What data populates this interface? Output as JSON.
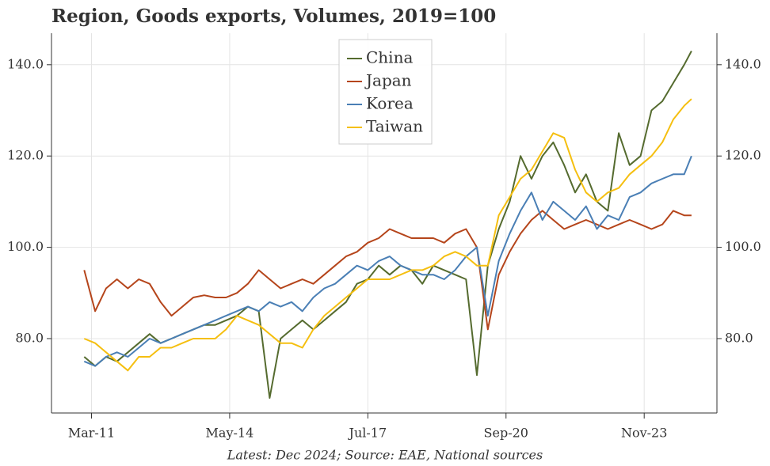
{
  "chart_data": {
    "type": "line",
    "title": "Region, Goods exports, Volumes, 2019=100",
    "source": "Latest: Dec 2024; Source: EAE, National sources",
    "x": [
      "2011-01",
      "2011-04",
      "2011-07",
      "2011-10",
      "2012-01",
      "2012-04",
      "2012-07",
      "2012-10",
      "2013-01",
      "2013-04",
      "2013-07",
      "2013-10",
      "2014-01",
      "2014-04",
      "2014-07",
      "2014-10",
      "2015-01",
      "2015-04",
      "2015-07",
      "2015-10",
      "2016-01",
      "2016-04",
      "2016-07",
      "2016-10",
      "2017-01",
      "2017-04",
      "2017-07",
      "2017-10",
      "2018-01",
      "2018-04",
      "2018-07",
      "2018-10",
      "2019-01",
      "2019-04",
      "2019-07",
      "2019-10",
      "2020-01",
      "2020-04",
      "2020-07",
      "2020-10",
      "2021-01",
      "2021-04",
      "2021-07",
      "2021-10",
      "2022-01",
      "2022-04",
      "2022-07",
      "2022-10",
      "2023-01",
      "2023-04",
      "2023-07",
      "2023-10",
      "2024-01",
      "2024-04",
      "2024-07",
      "2024-10",
      "2024-12"
    ],
    "series": [
      {
        "name": "China",
        "color": "#556b2f",
        "values": [
          76,
          74,
          76,
          75,
          77,
          79,
          81,
          79,
          80,
          81,
          82,
          83,
          83,
          84,
          85,
          87,
          86,
          67,
          80,
          82,
          84,
          82,
          84,
          86,
          88,
          92,
          93,
          96,
          94,
          96,
          95,
          92,
          96,
          95,
          94,
          93,
          72,
          96,
          104,
          110,
          120,
          115,
          120,
          123,
          118,
          112,
          116,
          110,
          108,
          125,
          118,
          120,
          130,
          132,
          136,
          140,
          143
        ]
      },
      {
        "name": "Japan",
        "color": "#b5451b",
        "values": [
          95,
          86,
          91,
          93,
          91,
          93,
          92,
          88,
          85,
          87,
          89,
          89.5,
          89,
          89,
          90,
          92,
          95,
          93,
          91,
          92,
          93,
          92,
          94,
          96,
          98,
          99,
          101,
          102,
          104,
          103,
          102,
          102,
          102,
          101,
          103,
          104,
          100,
          82,
          94,
          99,
          103,
          106,
          108,
          106,
          104,
          105,
          106,
          105,
          104,
          105,
          106,
          105,
          104,
          105,
          108,
          107,
          107
        ]
      },
      {
        "name": "Korea",
        "color": "#4a7fb5",
        "values": [
          75,
          74,
          76,
          77,
          76,
          78,
          80,
          79,
          80,
          81,
          82,
          83,
          84,
          85,
          86,
          87,
          86,
          88,
          87,
          88,
          86,
          89,
          91,
          92,
          94,
          96,
          95,
          97,
          98,
          96,
          95,
          94,
          94,
          93,
          95,
          98,
          100,
          85,
          97,
          103,
          108,
          112,
          106,
          110,
          108,
          106,
          109,
          104,
          107,
          106,
          111,
          112,
          114,
          115,
          116,
          116,
          120
        ]
      },
      {
        "name": "Taiwan",
        "color": "#f5bf10",
        "values": [
          80,
          79,
          77,
          75,
          73,
          76,
          76,
          78,
          78,
          79,
          80,
          80,
          80,
          82,
          85,
          84,
          83,
          81,
          79,
          79,
          78,
          82,
          85,
          87,
          89,
          91,
          93,
          93,
          93,
          94,
          95,
          95,
          96,
          98,
          99,
          98,
          96,
          96,
          107,
          111,
          115,
          117,
          121,
          125,
          124,
          117,
          112,
          110,
          112,
          113,
          116,
          118,
          120,
          123,
          128,
          131,
          132.5
        ]
      }
    ],
    "xlim": [
      "2010-04",
      "2025-07"
    ],
    "xticks": [
      {
        "value": "2011-03",
        "label": "Mar-11"
      },
      {
        "value": "2014-05",
        "label": "May-14"
      },
      {
        "value": "2017-07",
        "label": "Jul-17"
      },
      {
        "value": "2020-09",
        "label": "Sep-20"
      },
      {
        "value": "2023-11",
        "label": "Nov-23"
      }
    ],
    "ylim": [
      63.7,
      146.9
    ],
    "yticks": [
      {
        "value": 80,
        "label": "80.0"
      },
      {
        "value": 100,
        "label": "100.0"
      },
      {
        "value": 120,
        "label": "120.0"
      },
      {
        "value": 140,
        "label": "140.0"
      }
    ],
    "grid": true,
    "legend": "top"
  }
}
